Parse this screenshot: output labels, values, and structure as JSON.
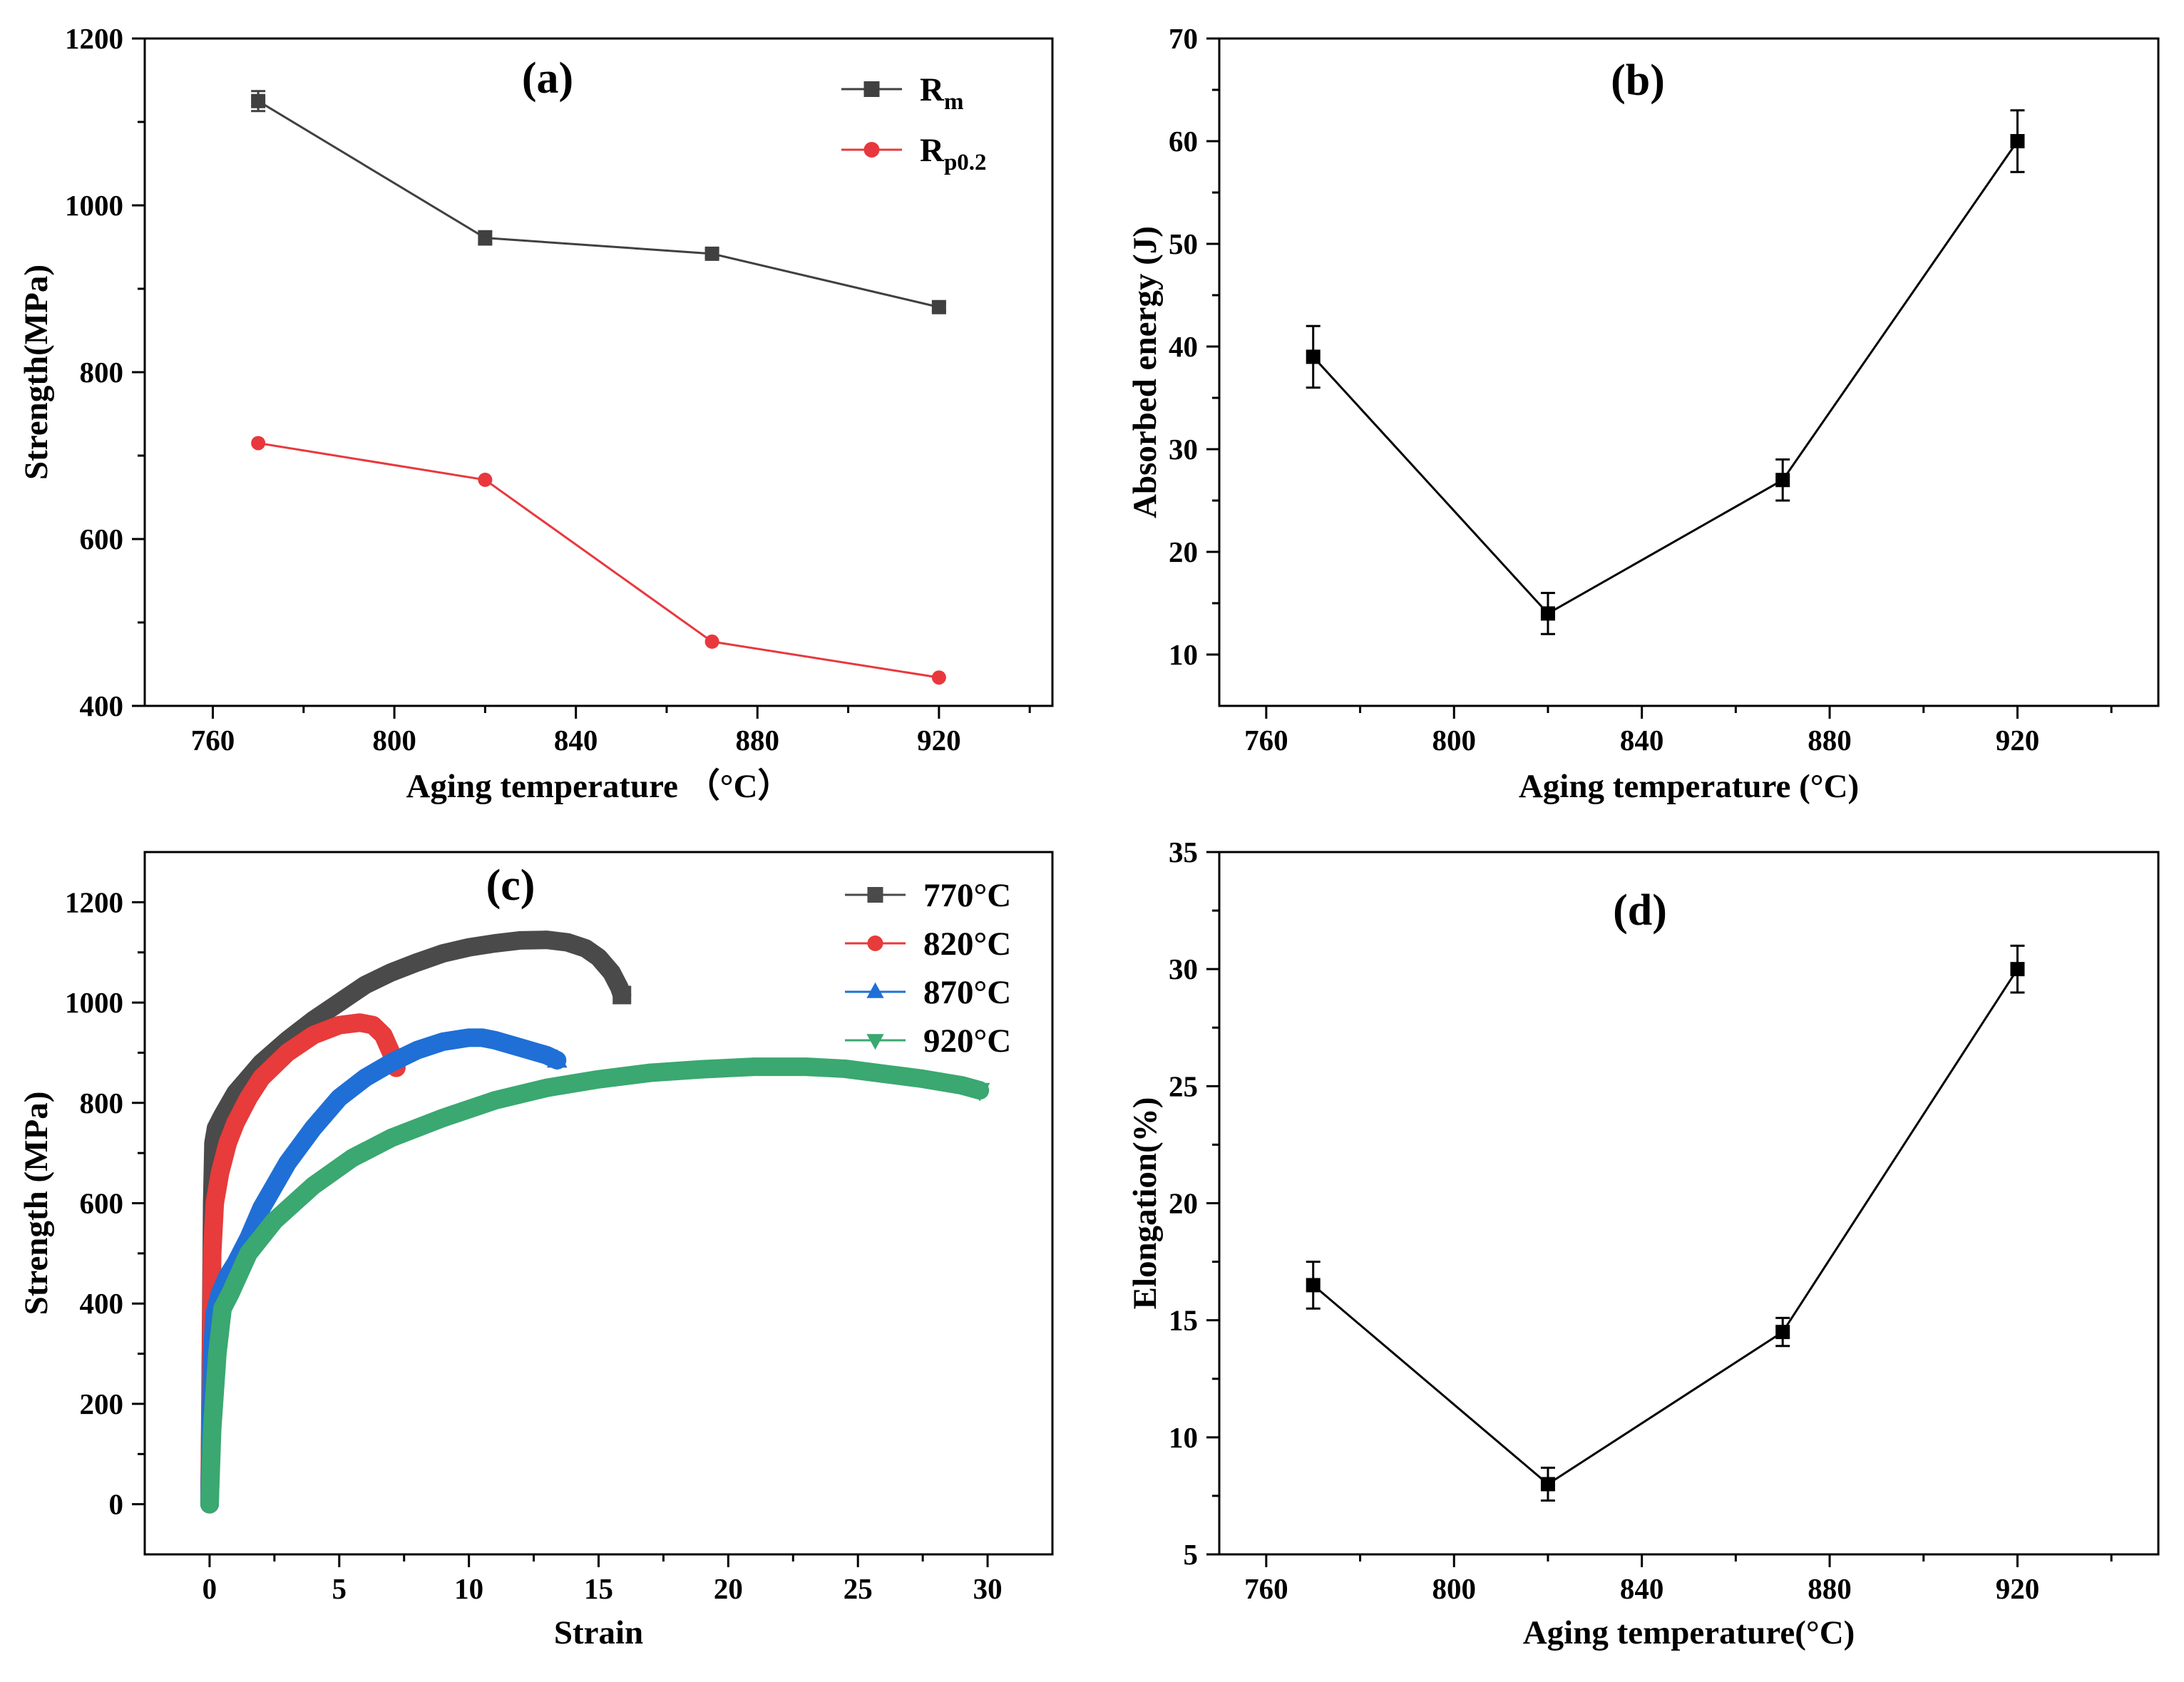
{
  "chart_data": [
    {
      "panel_label": "(a)",
      "type": "line",
      "xlabel": "Aging temperature （°C）",
      "ylabel": "Strength(MPa)",
      "xlim": [
        745,
        945
      ],
      "ylim": [
        400,
        1200
      ],
      "xticks": [
        760,
        800,
        840,
        880,
        920
      ],
      "yticks": [
        400,
        600,
        800,
        1000,
        1200
      ],
      "minor_x": true,
      "minor_y": true,
      "legend_position": "top-right",
      "series": [
        {
          "name_main": "R",
          "name_sub": "m",
          "color": "#404040",
          "marker": "square",
          "x": [
            770,
            820,
            870,
            920
          ],
          "y": [
            1125,
            961,
            942,
            878
          ],
          "err": [
            12,
            8,
            5,
            5
          ]
        },
        {
          "name_main": "R",
          "name_sub": "p0.2",
          "color": "#e8383d",
          "marker": "circle",
          "x": [
            770,
            820,
            870,
            920
          ],
          "y": [
            715,
            671,
            477,
            434
          ],
          "err": [
            0,
            0,
            0,
            0
          ]
        }
      ]
    },
    {
      "panel_label": "(b)",
      "type": "line",
      "xlabel": "Aging temperature (°C)",
      "ylabel": "Absorbed energy (J)",
      "xlim": [
        750,
        950
      ],
      "ylim": [
        5,
        70
      ],
      "xticks": [
        760,
        800,
        840,
        880,
        920
      ],
      "yticks": [
        10,
        20,
        30,
        40,
        50,
        60,
        70
      ],
      "minor_x": true,
      "minor_y": true,
      "series": [
        {
          "color": "#000000",
          "marker": "square",
          "x": [
            770,
            820,
            870,
            920
          ],
          "y": [
            39,
            14,
            27,
            60
          ],
          "err": [
            3,
            2,
            2,
            3
          ]
        }
      ]
    },
    {
      "panel_label": "(c)",
      "type": "line",
      "xlabel": "Strain",
      "ylabel": "Strength (MPa)",
      "xlim": [
        -2.5,
        32.5
      ],
      "ylim": [
        -100,
        1300
      ],
      "xticks": [
        0,
        5,
        10,
        15,
        20,
        25,
        30
      ],
      "yticks": [
        0,
        200,
        400,
        600,
        800,
        1000,
        1200
      ],
      "minor_x": true,
      "minor_y": true,
      "legend_position": "top-right",
      "series": [
        {
          "name": "770°C",
          "color": "#4a4a4a",
          "marker": "square",
          "x": [
            0,
            0.05,
            0.1,
            0.15,
            0.25,
            0.5,
            1,
            2,
            3,
            4,
            5,
            6,
            7,
            8,
            9,
            10,
            11,
            12,
            13,
            13.8,
            14.5,
            15,
            15.5,
            15.8,
            15.9
          ],
          "y": [
            0,
            300,
            600,
            720,
            750,
            775,
            820,
            880,
            925,
            965,
            1000,
            1035,
            1060,
            1080,
            1098,
            1110,
            1118,
            1124,
            1125,
            1120,
            1108,
            1090,
            1060,
            1030,
            1015
          ]
        },
        {
          "name": "820°C",
          "color": "#e83b3b",
          "marker": "circle",
          "x": [
            0,
            0.05,
            0.1,
            0.2,
            0.4,
            0.7,
            1,
            1.5,
            2,
            3,
            4,
            5,
            5.8,
            6.3,
            6.7,
            7,
            7.2
          ],
          "y": [
            0,
            250,
            500,
            600,
            660,
            720,
            760,
            810,
            850,
            900,
            935,
            955,
            960,
            955,
            935,
            900,
            870
          ]
        },
        {
          "name": "870°C",
          "color": "#1f6fd6",
          "marker": "triangle-up",
          "x": [
            0,
            0.05,
            0.1,
            0.2,
            0.4,
            0.7,
            1,
            1.5,
            2,
            3,
            4,
            5,
            6,
            7,
            8,
            9,
            10,
            10.5,
            11,
            12,
            13,
            13.4
          ],
          "y": [
            0,
            150,
            300,
            380,
            420,
            455,
            480,
            530,
            590,
            680,
            750,
            810,
            850,
            880,
            905,
            922,
            930,
            930,
            925,
            910,
            895,
            885
          ]
        },
        {
          "name": "920°C",
          "color": "#3aa870",
          "marker": "triangle-down",
          "x": [
            0,
            0.1,
            0.3,
            0.5,
            0.8,
            1.5,
            2.5,
            4,
            5.5,
            7,
            9,
            11,
            13,
            15,
            17,
            19,
            21,
            23,
            24.5,
            26,
            27.5,
            29,
            29.7
          ],
          "y": [
            0,
            150,
            300,
            390,
            420,
            500,
            565,
            635,
            690,
            730,
            770,
            805,
            830,
            847,
            860,
            867,
            872,
            872,
            868,
            858,
            848,
            835,
            825
          ]
        }
      ]
    },
    {
      "panel_label": "(d)",
      "type": "line",
      "xlabel": "Aging temperature(°C)",
      "ylabel": "Elongation(%)",
      "xlim": [
        750,
        950
      ],
      "ylim": [
        5,
        35
      ],
      "xticks": [
        760,
        800,
        840,
        880,
        920
      ],
      "yticks": [
        5,
        10,
        15,
        20,
        25,
        30,
        35
      ],
      "minor_x": true,
      "minor_y": true,
      "series": [
        {
          "color": "#000000",
          "marker": "square",
          "x": [
            770,
            820,
            870,
            920
          ],
          "y": [
            16.5,
            8,
            14.5,
            30
          ],
          "err": [
            1,
            0.7,
            0.6,
            1
          ]
        }
      ]
    }
  ]
}
